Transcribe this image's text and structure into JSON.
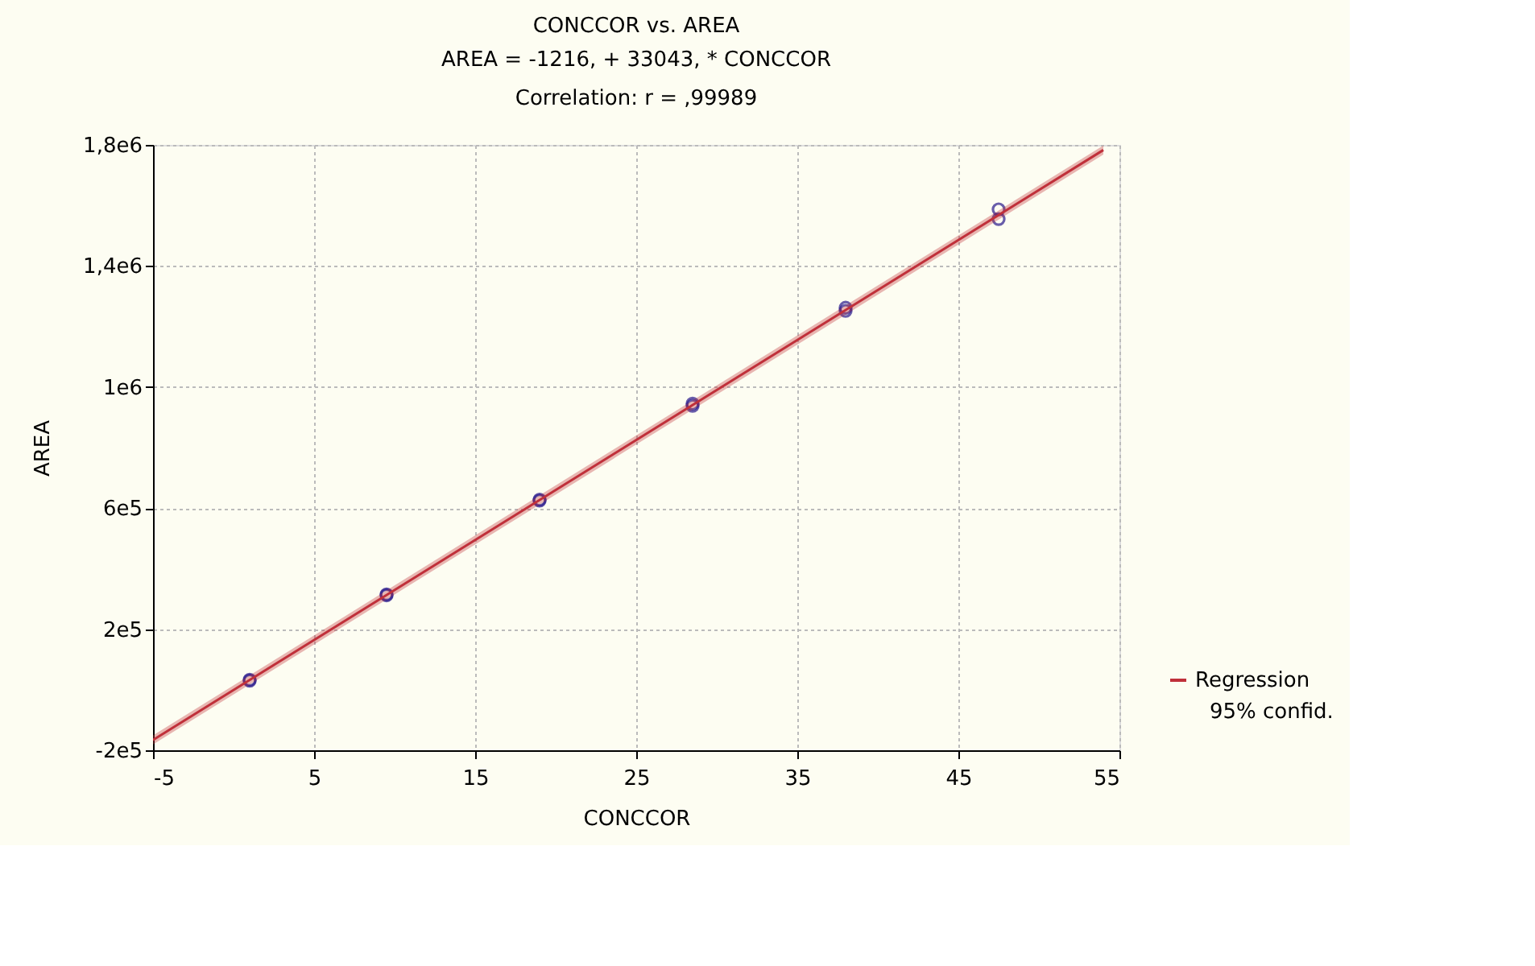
{
  "chart_data": {
    "type": "scatter",
    "title": "CONCCOR vs. AREA",
    "subtitle": [
      "AREA = -1216, + 33043, * CONCCOR",
      "Correlation: r = ,99989"
    ],
    "xlabel": "CONCCOR",
    "ylabel": "AREA",
    "xlim": [
      -5,
      55
    ],
    "xticks": [
      -5,
      5,
      15,
      25,
      35,
      45,
      55
    ],
    "ylim": [
      -200000,
      1800000
    ],
    "yticks": [
      {
        "value": -200000,
        "label": "-2e5"
      },
      {
        "value": 200000,
        "label": "2e5"
      },
      {
        "value": 600000,
        "label": "6e5"
      },
      {
        "value": 1000000,
        "label": "1e6"
      },
      {
        "value": 1400000,
        "label": "1,4e6"
      },
      {
        "value": 1800000,
        "label": "1,8e6"
      }
    ],
    "grid": true,
    "legend": "bottom right",
    "annotations": [
      "95% confid."
    ],
    "series": [
      {
        "type": "scatter",
        "marker": "circle",
        "color": "#2a1a8c",
        "x": [
          1,
          1,
          9.5,
          9.5,
          19,
          19,
          28.5,
          28.5,
          38,
          38,
          47.5,
          47.5
        ],
        "values": [
          30000,
          33000,
          312000,
          315000,
          625000,
          628000,
          938000,
          945000,
          1252000,
          1262000,
          1555000,
          1587000
        ]
      },
      {
        "name": "Regression",
        "type": "line",
        "color": "#c0303a",
        "x": [
          -5,
          54
        ],
        "values": [
          -166000,
          1783000
        ],
        "lower": [
          -181000,
          1768000
        ],
        "upper": [
          -151000,
          1798000
        ]
      }
    ]
  }
}
